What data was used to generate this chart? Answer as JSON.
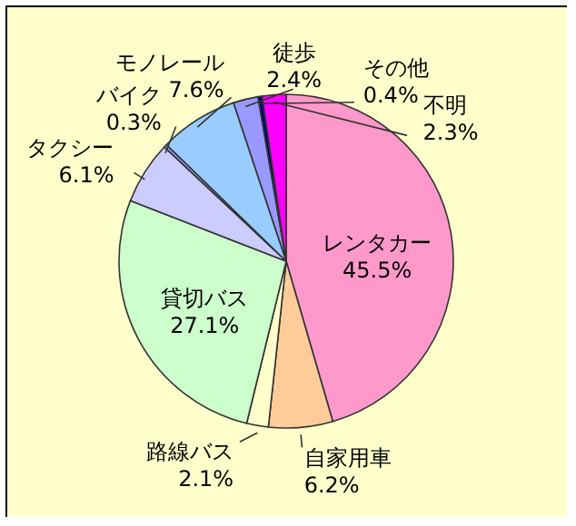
{
  "chart_data": {
    "type": "pie",
    "categories": [
      "レンタカー",
      "自家用車",
      "路線バス",
      "貸切バス",
      "タクシー",
      "バイク",
      "モノレール",
      "徒歩",
      "その他",
      "不明"
    ],
    "values": [
      45.5,
      6.2,
      2.1,
      27.1,
      6.1,
      0.3,
      7.6,
      2.4,
      0.4,
      2.3
    ],
    "colors": [
      "#ff99cc",
      "#ffcc99",
      "#ffffcc",
      "#ccffcc",
      "#ccccff",
      "#9999ff",
      "#99ccff",
      "#9999ff",
      "#000080",
      "#ff00ff"
    ],
    "value_labels": [
      "45.5%",
      "6.2%",
      "2.1%",
      "27.1%",
      "6.1%",
      "0.3%",
      "7.6%",
      "2.4%",
      "0.4%",
      "2.3%"
    ]
  }
}
